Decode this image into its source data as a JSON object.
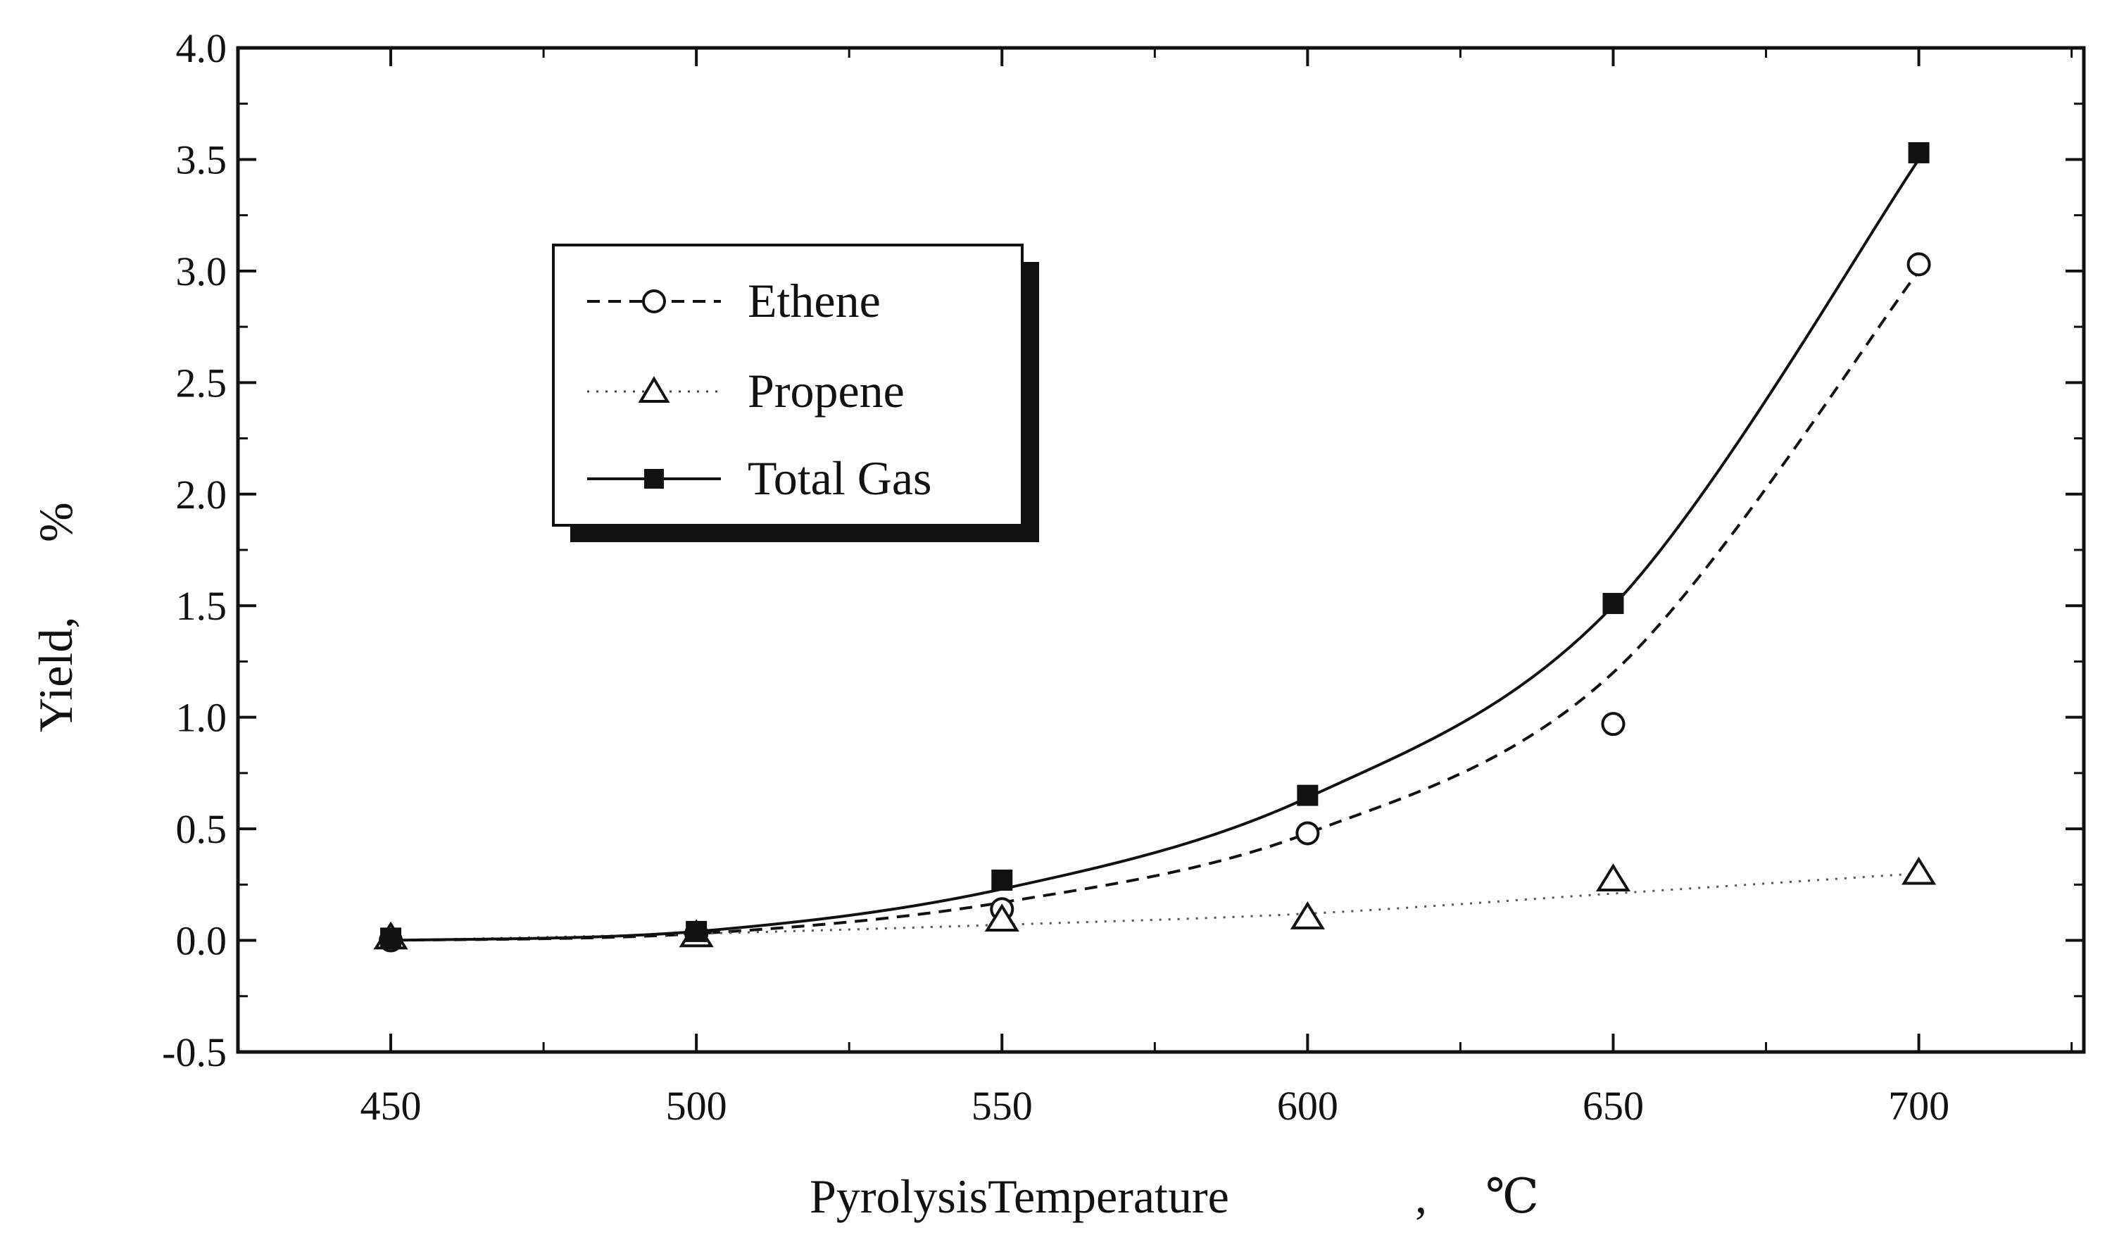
{
  "chart_data": {
    "type": "line",
    "title": "",
    "xlabel": "PyrolysisTemperature",
    "xlabel_sep": ",",
    "xlabel_unit": "℃",
    "ylabel": "Yield,",
    "ylabel_unit": "%",
    "xlim": [
      425,
      727
    ],
    "ylim": [
      -0.5,
      4.0
    ],
    "x_ticks": [
      450,
      500,
      550,
      600,
      650,
      700
    ],
    "x_tick_labels": [
      "450",
      "500",
      "550",
      "600",
      "650",
      "700"
    ],
    "y_ticks": [
      -0.5,
      0.0,
      0.5,
      1.0,
      1.5,
      2.0,
      2.5,
      3.0,
      3.5,
      4.0
    ],
    "y_tick_labels": [
      "-0.5",
      "0.0",
      "0.5",
      "1.0",
      "1.5",
      "2.0",
      "2.5",
      "3.0",
      "3.5",
      "4.0"
    ],
    "legend_position": "upper-left",
    "grid": false,
    "series": [
      {
        "name": "Ethene",
        "marker": "open-circle",
        "line": "dashed",
        "x": [
          450,
          500,
          550,
          600,
          650,
          700
        ],
        "values": [
          0.0,
          0.03,
          0.14,
          0.48,
          0.97,
          3.03
        ],
        "fit": [
          0.0,
          0.03,
          0.17,
          0.48,
          1.2,
          3.0
        ]
      },
      {
        "name": "Propene",
        "marker": "open-triangle",
        "line": "dotted",
        "x": [
          450,
          500,
          550,
          600,
          650,
          700
        ],
        "values": [
          0.01,
          0.02,
          0.09,
          0.1,
          0.27,
          0.3
        ],
        "fit": [
          0.0,
          0.03,
          0.07,
          0.12,
          0.21,
          0.3
        ]
      },
      {
        "name": "Total Gas",
        "marker": "filled-square",
        "line": "solid",
        "x": [
          450,
          500,
          550,
          600,
          650,
          700
        ],
        "values": [
          0.01,
          0.04,
          0.27,
          0.65,
          1.51,
          3.53
        ],
        "fit": [
          0.0,
          0.04,
          0.23,
          0.64,
          1.5,
          3.5
        ]
      }
    ]
  }
}
